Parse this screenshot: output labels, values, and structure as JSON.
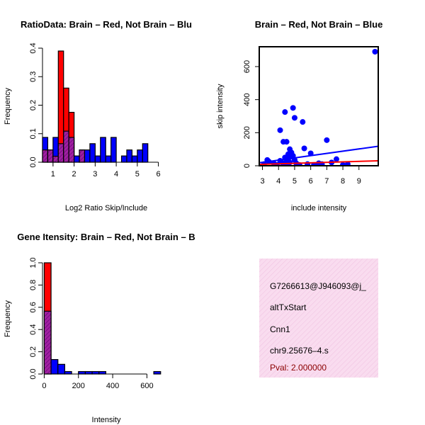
{
  "colors": {
    "red": "#ff0000",
    "blue": "#0000ff",
    "purple": "#a020a0",
    "dark_purple": "#5a0070",
    "info_bg": "#f9dcef",
    "pval": "#8b0000"
  },
  "chart_data": [
    {
      "id": "ratio-hist",
      "type": "bar",
      "title": "RatioData: Brain – Red, Not Brain – Blu",
      "xlabel": "Log2 Ratio Skip/Include",
      "ylabel": "Frequency",
      "xlim": [
        0.5,
        6.35
      ],
      "ylim": [
        0,
        0.4
      ],
      "xticks": [
        1,
        2,
        3,
        4,
        5,
        6
      ],
      "yticks": [
        0.0,
        0.1,
        0.2,
        0.3,
        0.4
      ],
      "bin_start": 0.5,
      "bin_width": 0.25,
      "series": [
        {
          "name": "Not Brain",
          "color": "blue",
          "values": [
            0.087,
            0.043,
            0.087,
            0.065,
            0.109,
            0.087,
            0.022,
            0.043,
            0.043,
            0.065,
            0.022,
            0.087,
            0.022,
            0.087,
            0.0,
            0.022,
            0.043,
            0.022,
            0.043,
            0.065
          ]
        },
        {
          "name": "Brain",
          "color": "red",
          "values": [
            0.043,
            0.043,
            0.021,
            0.39,
            0.26,
            0.175,
            0.0,
            0.043,
            0.0,
            0.0,
            0.0,
            0.0,
            0.0,
            0.0,
            0.0,
            0.0,
            0.0,
            0.0,
            0.0,
            0.0
          ]
        }
      ]
    },
    {
      "id": "scatter",
      "type": "scatter",
      "title": "Brain – Red, Not Brain – Blue",
      "xlabel": "include intensity",
      "ylabel": "skip intensity",
      "xlim": [
        2.8,
        10.2
      ],
      "ylim": [
        0,
        720
      ],
      "xticks": [
        3,
        4,
        5,
        6,
        7,
        8,
        9
      ],
      "yticks": [
        0,
        200,
        400,
        600
      ],
      "points": [
        [
          3.1,
          10
        ],
        [
          3.4,
          25
        ],
        [
          3.7,
          15
        ],
        [
          3.9,
          5
        ],
        [
          4.1,
          30
        ],
        [
          4.1,
          215
        ],
        [
          4.3,
          145
        ],
        [
          4.4,
          325
        ],
        [
          4.4,
          50
        ],
        [
          4.5,
          145
        ],
        [
          4.5,
          30
        ],
        [
          4.6,
          70
        ],
        [
          4.6,
          40
        ],
        [
          4.7,
          100
        ],
        [
          4.7,
          20
        ],
        [
          4.8,
          80
        ],
        [
          4.8,
          55
        ],
        [
          4.9,
          350
        ],
        [
          4.9,
          60
        ],
        [
          5.0,
          290
        ],
        [
          5.0,
          35
        ],
        [
          5.1,
          15
        ],
        [
          5.3,
          5
        ],
        [
          5.5,
          265
        ],
        [
          5.6,
          105
        ],
        [
          5.8,
          10
        ],
        [
          6.0,
          75
        ],
        [
          6.2,
          5
        ],
        [
          6.5,
          15
        ],
        [
          6.7,
          10
        ],
        [
          7.0,
          155
        ],
        [
          7.3,
          20
        ],
        [
          7.6,
          40
        ],
        [
          8.0,
          5
        ],
        [
          8.3,
          10
        ],
        [
          10.0,
          690
        ],
        [
          3.3,
          35
        ],
        [
          4.2,
          20
        ],
        [
          4.4,
          10
        ],
        [
          4.6,
          5
        ]
      ],
      "fits": [
        {
          "name": "Not Brain fit",
          "color": "blue",
          "x": [
            2.8,
            10.2
          ],
          "y": [
            18,
            118
          ]
        },
        {
          "name": "Brain fit",
          "color": "red",
          "x": [
            2.8,
            10.2
          ],
          "y": [
            8,
            30
          ]
        }
      ]
    },
    {
      "id": "intensity-hist",
      "type": "bar",
      "title": "Gene Itensity: Brain – Red, Not Brain – B",
      "xlabel": "Intensity",
      "ylabel": "Frequency",
      "xlim": [
        -10,
        710
      ],
      "ylim": [
        0,
        1.0
      ],
      "xticks": [
        0,
        200,
        400,
        600
      ],
      "yticks": [
        0.0,
        0.2,
        0.4,
        0.6,
        0.8,
        1.0
      ],
      "bin_start": 0,
      "bin_width": 40,
      "series": [
        {
          "name": "Not Brain",
          "color": "blue",
          "values": [
            0.565,
            0.13,
            0.087,
            0.022,
            0.0,
            0.022,
            0.022,
            0.022,
            0.022,
            0.0,
            0.0,
            0.0,
            0.0,
            0.0,
            0.0,
            0.0,
            0.022
          ]
        },
        {
          "name": "Brain",
          "color": "red",
          "values": [
            1.0,
            0.0,
            0.0,
            0.0,
            0.0,
            0.0,
            0.0,
            0.0,
            0.0,
            0.0,
            0.0,
            0.0,
            0.0,
            0.0,
            0.0,
            0.0,
            0.0
          ]
        }
      ]
    }
  ],
  "info": {
    "probe_id": "G7266613@J946093@j_",
    "event_type": "altTxStart",
    "gene": "Cnn1",
    "location": "chr9.25676–4.s",
    "pval": "Pval: 2.000000"
  }
}
